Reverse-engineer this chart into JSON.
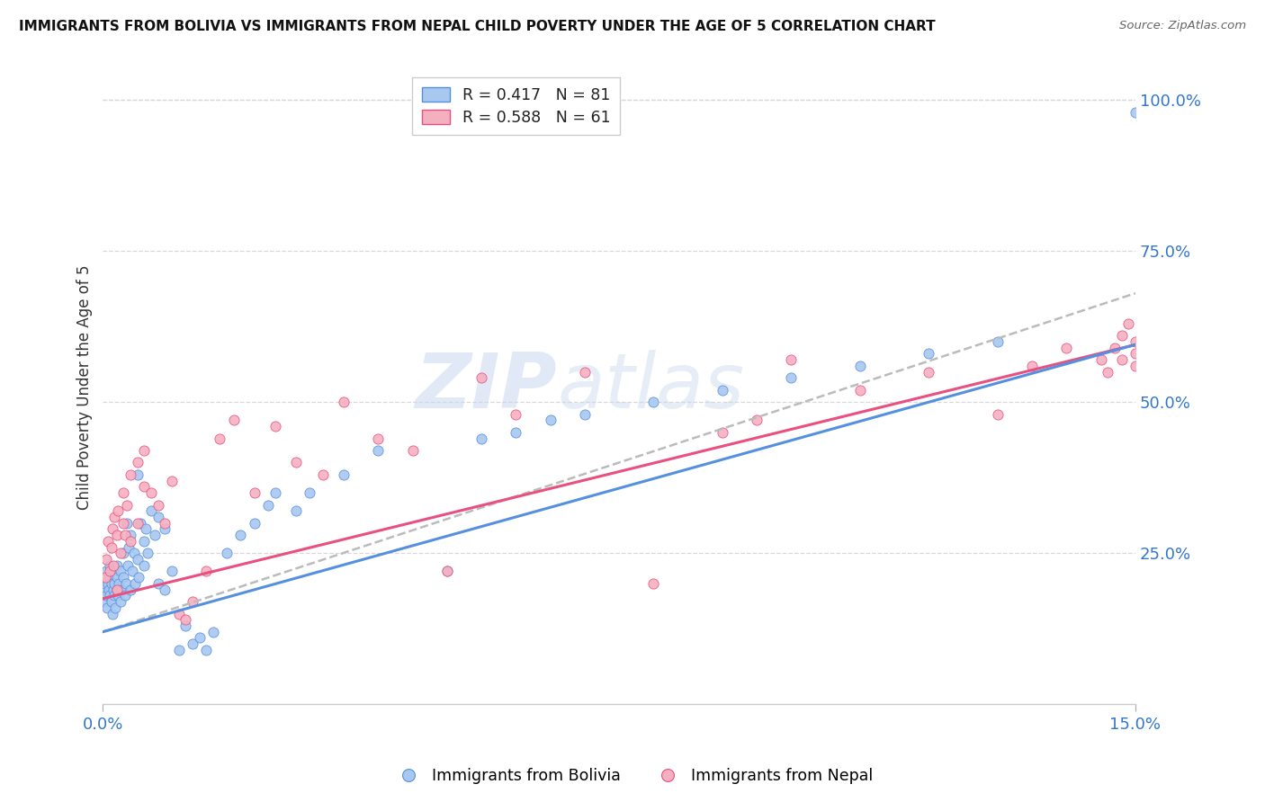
{
  "title": "IMMIGRANTS FROM BOLIVIA VS IMMIGRANTS FROM NEPAL CHILD POVERTY UNDER THE AGE OF 5 CORRELATION CHART",
  "source": "Source: ZipAtlas.com",
  "ylabel": "Child Poverty Under the Age of 5",
  "legend_bolivia": "Immigrants from Bolivia",
  "legend_nepal": "Immigrants from Nepal",
  "R_bolivia": "0.417",
  "N_bolivia": "81",
  "R_nepal": "0.588",
  "N_nepal": "61",
  "color_bolivia": "#a8c8f0",
  "color_nepal": "#f5b0c0",
  "line_color_bolivia": "#5590e0",
  "line_color_nepal": "#e85080",
  "watermark_zip": "ZIP",
  "watermark_atlas": "atlas",
  "x_min": 0.0,
  "x_max": 0.15,
  "y_min": 0.0,
  "y_max": 1.05,
  "x_ticks": [
    0.0,
    0.15
  ],
  "x_tick_labels": [
    "0.0%",
    "15.0%"
  ],
  "y_ticks": [
    0.25,
    0.5,
    0.75,
    1.0
  ],
  "y_tick_labels": [
    "25.0%",
    "50.0%",
    "75.0%",
    "100.0%"
  ],
  "bolivia_line_x": [
    0.0,
    0.15
  ],
  "bolivia_line_y": [
    0.12,
    0.595
  ],
  "nepal_line_x": [
    0.0,
    0.15
  ],
  "nepal_line_y": [
    0.175,
    0.595
  ],
  "grey_line_x": [
    0.0,
    0.15
  ],
  "grey_line_y": [
    0.12,
    0.68
  ],
  "bolivia_scatter_x": [
    0.0002,
    0.0003,
    0.0004,
    0.0005,
    0.0005,
    0.0006,
    0.0007,
    0.0008,
    0.0009,
    0.001,
    0.001,
    0.0012,
    0.0013,
    0.0014,
    0.0015,
    0.0015,
    0.0016,
    0.0017,
    0.0018,
    0.002,
    0.002,
    0.0021,
    0.0022,
    0.0023,
    0.0025,
    0.0026,
    0.0027,
    0.003,
    0.003,
    0.0032,
    0.0033,
    0.0035,
    0.0036,
    0.0038,
    0.004,
    0.004,
    0.0042,
    0.0045,
    0.0047,
    0.005,
    0.005,
    0.0052,
    0.0055,
    0.006,
    0.006,
    0.0062,
    0.0065,
    0.007,
    0.0075,
    0.008,
    0.008,
    0.009,
    0.009,
    0.01,
    0.011,
    0.012,
    0.013,
    0.014,
    0.015,
    0.016,
    0.018,
    0.02,
    0.022,
    0.024,
    0.025,
    0.028,
    0.03,
    0.035,
    0.04,
    0.05,
    0.055,
    0.06,
    0.065,
    0.07,
    0.08,
    0.09,
    0.1,
    0.11,
    0.12,
    0.13,
    0.15
  ],
  "bolivia_scatter_y": [
    0.19,
    0.17,
    0.2,
    0.18,
    0.22,
    0.16,
    0.2,
    0.19,
    0.21,
    0.18,
    0.23,
    0.17,
    0.2,
    0.15,
    0.19,
    0.22,
    0.18,
    0.2,
    0.16,
    0.21,
    0.19,
    0.23,
    0.18,
    0.2,
    0.17,
    0.22,
    0.19,
    0.21,
    0.25,
    0.18,
    0.2,
    0.3,
    0.23,
    0.26,
    0.19,
    0.28,
    0.22,
    0.25,
    0.2,
    0.24,
    0.38,
    0.21,
    0.3,
    0.27,
    0.23,
    0.29,
    0.25,
    0.32,
    0.28,
    0.31,
    0.2,
    0.29,
    0.19,
    0.22,
    0.09,
    0.13,
    0.1,
    0.11,
    0.09,
    0.12,
    0.25,
    0.28,
    0.3,
    0.33,
    0.35,
    0.32,
    0.35,
    0.38,
    0.42,
    0.22,
    0.44,
    0.45,
    0.47,
    0.48,
    0.5,
    0.52,
    0.54,
    0.56,
    0.58,
    0.6,
    0.98
  ],
  "nepal_scatter_x": [
    0.0003,
    0.0005,
    0.0007,
    0.001,
    0.0012,
    0.0014,
    0.0015,
    0.0017,
    0.002,
    0.002,
    0.0022,
    0.0025,
    0.003,
    0.003,
    0.0032,
    0.0035,
    0.004,
    0.004,
    0.005,
    0.005,
    0.006,
    0.006,
    0.007,
    0.008,
    0.009,
    0.01,
    0.011,
    0.012,
    0.013,
    0.015,
    0.017,
    0.019,
    0.022,
    0.025,
    0.028,
    0.032,
    0.035,
    0.04,
    0.045,
    0.05,
    0.055,
    0.06,
    0.07,
    0.08,
    0.09,
    0.095,
    0.1,
    0.11,
    0.12,
    0.13,
    0.135,
    0.14,
    0.145,
    0.148,
    0.15,
    0.15,
    0.15,
    0.149,
    0.148,
    0.147,
    0.146
  ],
  "nepal_scatter_y": [
    0.21,
    0.24,
    0.27,
    0.22,
    0.26,
    0.29,
    0.23,
    0.31,
    0.19,
    0.28,
    0.32,
    0.25,
    0.3,
    0.35,
    0.28,
    0.33,
    0.27,
    0.38,
    0.3,
    0.4,
    0.36,
    0.42,
    0.35,
    0.33,
    0.3,
    0.37,
    0.15,
    0.14,
    0.17,
    0.22,
    0.44,
    0.47,
    0.35,
    0.46,
    0.4,
    0.38,
    0.5,
    0.44,
    0.42,
    0.22,
    0.54,
    0.48,
    0.55,
    0.2,
    0.45,
    0.47,
    0.57,
    0.52,
    0.55,
    0.48,
    0.56,
    0.59,
    0.57,
    0.61,
    0.58,
    0.6,
    0.56,
    0.63,
    0.57,
    0.59,
    0.55
  ]
}
